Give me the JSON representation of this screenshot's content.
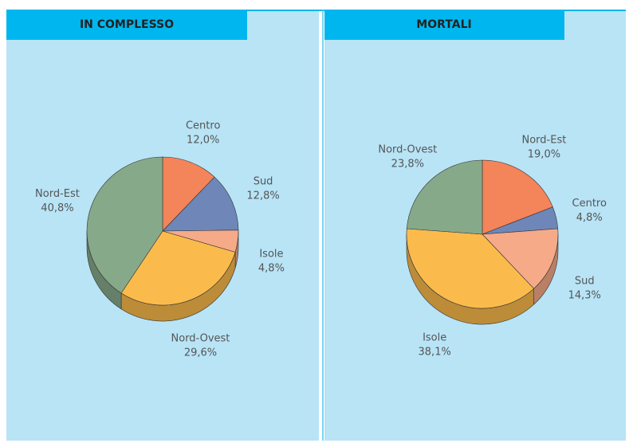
{
  "chart_data": [
    {
      "type": "pie",
      "title": "IN COMPLESSO",
      "categories": [
        "Centro",
        "Sud",
        "Isole",
        "Nord-Ovest",
        "Nord-Est"
      ],
      "values": [
        12.0,
        12.8,
        4.8,
        29.6,
        40.8
      ],
      "value_labels": [
        "12,0%",
        "12,8%",
        "4,8%",
        "29,6%",
        "40,8%"
      ],
      "colors": [
        "#f4845a",
        "#6f86b8",
        "#f6aa88",
        "#fbbb4c",
        "#86a98a"
      ]
    },
    {
      "type": "pie",
      "title": "MORTALI",
      "categories": [
        "Nord-Est",
        "Centro",
        "Sud",
        "Isole",
        "Nord-Ovest"
      ],
      "values": [
        19.0,
        4.8,
        14.3,
        38.1,
        23.8
      ],
      "value_labels": [
        "19,0%",
        "4,8%",
        "14,3%",
        "38,1%",
        "23,8%"
      ],
      "colors": [
        "#f4845a",
        "#6f86b8",
        "#f6aa88",
        "#fbbb4c",
        "#86a98a"
      ]
    }
  ]
}
